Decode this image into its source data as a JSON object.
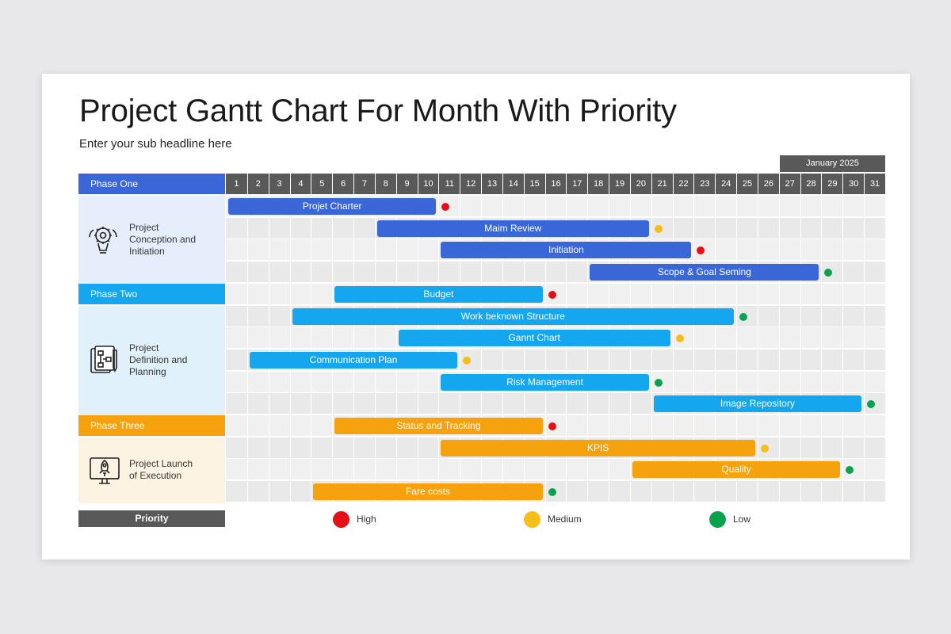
{
  "title": "Project Gantt Chart For Month With Priority",
  "subtitle": "Enter your sub headline here",
  "month_label": "January 2025",
  "colors": {
    "phase_one": "#3a67d8",
    "phase_two": "#14a6ee",
    "phase_three": "#f6a20f",
    "phase_one_bg": "#e6eefc",
    "phase_two_bg": "#e0f1fb",
    "phase_three_bg": "#fdf3e2",
    "high": "#e60f16",
    "medium": "#f7bd19",
    "low": "#0aa24f"
  },
  "phases": [
    {
      "header": "Phase One",
      "description": "Project\nConception and\nInitiation",
      "icon": "brain-gear-icon"
    },
    {
      "header": "Phase Two",
      "description": "Project\nDefinition and\nPlanning",
      "icon": "document-flowchart-icon"
    },
    {
      "header": "Phase Three",
      "description": "Project Launch\nof Execution",
      "icon": "rocket-launch-icon"
    }
  ],
  "priority_label": "Priority",
  "legend": [
    {
      "label": "High",
      "color": "#e60f16"
    },
    {
      "label": "Medium",
      "color": "#f7bd19"
    },
    {
      "label": "Low",
      "color": "#0aa24f"
    }
  ],
  "chart_data": {
    "type": "gantt",
    "x_categories": [
      "1",
      "2",
      "3",
      "4",
      "5",
      "6",
      "7",
      "8",
      "9",
      "10",
      "11",
      "12",
      "13",
      "14",
      "15",
      "16",
      "17",
      "18",
      "19",
      "20",
      "21",
      "22",
      "23",
      "24",
      "25",
      "26",
      "27",
      "28",
      "29",
      "30",
      "31"
    ],
    "tasks": [
      {
        "phase": 0,
        "name": "Projet Charter",
        "start": 1,
        "end": 10,
        "priority": "High"
      },
      {
        "phase": 0,
        "name": "Maim Review",
        "start": 8,
        "end": 20,
        "priority": "Medium"
      },
      {
        "phase": 0,
        "name": "Initiation",
        "start": 11,
        "end": 22,
        "priority": "High"
      },
      {
        "phase": 0,
        "name": "Scope & Goal Seming",
        "start": 18,
        "end": 28,
        "priority": "Low"
      },
      {
        "phase": 1,
        "name": "Budget",
        "start": 6,
        "end": 15,
        "priority": "High"
      },
      {
        "phase": 1,
        "name": "Work beknown Structure",
        "start": 4,
        "end": 24,
        "priority": "Low"
      },
      {
        "phase": 1,
        "name": "Gannt Chart",
        "start": 9,
        "end": 21,
        "priority": "Medium"
      },
      {
        "phase": 1,
        "name": "Communication Plan",
        "start": 2,
        "end": 11,
        "priority": "Medium"
      },
      {
        "phase": 1,
        "name": "Risk Management",
        "start": 11,
        "end": 20,
        "priority": "Low"
      },
      {
        "phase": 1,
        "name": "Image Repository",
        "start": 21,
        "end": 30,
        "priority": "Low"
      },
      {
        "phase": 2,
        "name": "Status and Tracking",
        "start": 6,
        "end": 15,
        "priority": "High"
      },
      {
        "phase": 2,
        "name": "KPIS",
        "start": 11,
        "end": 25,
        "priority": "Medium"
      },
      {
        "phase": 2,
        "name": "Quality",
        "start": 20,
        "end": 29,
        "priority": "Low"
      },
      {
        "phase": 2,
        "name": "Fare costs",
        "start": 5,
        "end": 15,
        "priority": "Low"
      }
    ]
  }
}
